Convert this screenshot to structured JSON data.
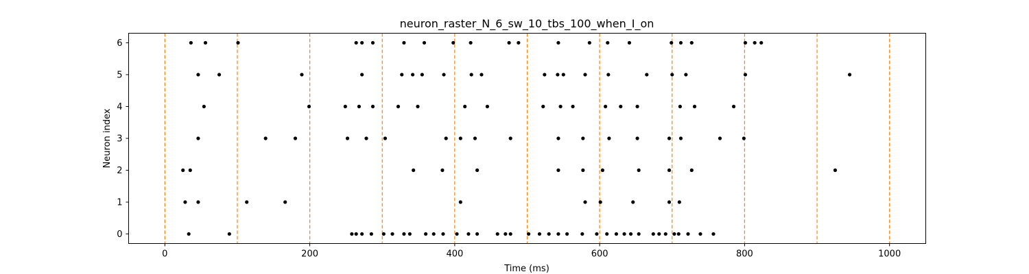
{
  "chart_data": {
    "type": "scatter",
    "title": "neuron_raster_N_6_sw_10_tbs_100_when_I_on",
    "xlabel": "Time (ms)",
    "ylabel": "Neuron index",
    "xlim": [
      -50,
      1050
    ],
    "ylim": [
      -0.3,
      6.3
    ],
    "xticks": [
      0,
      200,
      400,
      600,
      800,
      1000
    ],
    "yticks": [
      0,
      1,
      2,
      3,
      4,
      5,
      6
    ],
    "xtick_labels": [
      "0",
      "200",
      "400",
      "600",
      "800",
      "1000"
    ],
    "ytick_labels": [
      "0",
      "1",
      "2",
      "3",
      "4",
      "5",
      "6"
    ],
    "grid": false,
    "marker_color": "#000000",
    "vline_color": "#ff7f0e",
    "vlines": [
      0,
      100,
      200,
      300,
      400,
      500,
      600,
      700,
      800,
      900,
      1000
    ],
    "spikes": [
      {
        "neuron": 0,
        "times": [
          33,
          89,
          258,
          264,
          272,
          285,
          302,
          314,
          330,
          338,
          360,
          371,
          384,
          403,
          419,
          431,
          459,
          470,
          477,
          502,
          517,
          530,
          543,
          555,
          576,
          596,
          610,
          623,
          634,
          643,
          654,
          674,
          682,
          691,
          703,
          709,
          722,
          739,
          757
        ]
      },
      {
        "neuron": 1,
        "times": [
          28,
          46,
          113,
          166,
          408,
          580,
          601,
          646,
          696,
          710
        ]
      },
      {
        "neuron": 2,
        "times": [
          25,
          35,
          343,
          383,
          431,
          543,
          577,
          604,
          654,
          696,
          727,
          925
        ]
      },
      {
        "neuron": 3,
        "times": [
          46,
          139,
          180,
          252,
          278,
          304,
          388,
          408,
          428,
          477,
          543,
          577,
          613,
          652,
          696,
          712,
          766,
          799
        ]
      },
      {
        "neuron": 4,
        "times": [
          54,
          199,
          249,
          268,
          287,
          322,
          349,
          414,
          445,
          522,
          546,
          563,
          608,
          629,
          652,
          711,
          731,
          785
        ]
      },
      {
        "neuron": 5,
        "times": [
          46,
          75,
          189,
          272,
          327,
          342,
          355,
          385,
          423,
          437,
          524,
          542,
          550,
          580,
          612,
          665,
          700,
          719,
          801,
          945
        ]
      },
      {
        "neuron": 6,
        "times": [
          36,
          56,
          101,
          264,
          272,
          287,
          330,
          358,
          398,
          422,
          475,
          488,
          543,
          586,
          611,
          641,
          699,
          712,
          727,
          801,
          814,
          823
        ]
      }
    ]
  }
}
